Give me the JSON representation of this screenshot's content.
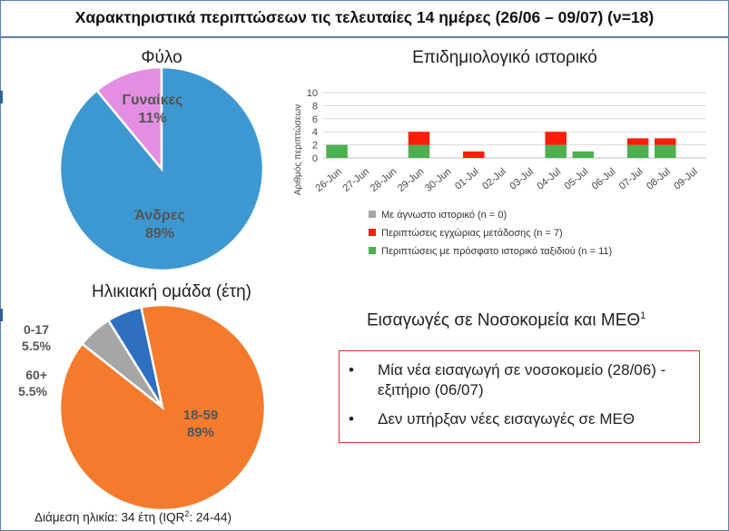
{
  "title": "Χαρακτηριστικά περιπτώσεων τις τελευταίες 14 ημέρες (26/06 – 09/07) (ν=18)",
  "colors": {
    "male": "#3d98d1",
    "female": "#e38ee3",
    "age_18_59": "#f47b2c",
    "age_0_17": "#2e6fc1",
    "age_60_plus": "#a6a6a6",
    "unknown": "#a6a6a6",
    "local": "#ff1c0a",
    "travel": "#4caf50",
    "box_border": "#d9342b"
  },
  "chart_data": [
    {
      "type": "pie",
      "title": "Φύλο",
      "slices": [
        {
          "label": "Άνδρες",
          "value": 89,
          "display": "89%",
          "color": "#3d98d1"
        },
        {
          "label": "Γυναίκες",
          "value": 11,
          "display": "11%",
          "color": "#e38ee3"
        }
      ]
    },
    {
      "type": "bar",
      "stacked": true,
      "title": "Επιδημιολογικό ιστορικό",
      "ylabel": "Αριθμός περιπτώσεων",
      "ylim": [
        0,
        10
      ],
      "yticks": [
        0,
        2,
        4,
        6,
        8,
        10
      ],
      "grid": true,
      "categories": [
        "26-Jun",
        "27-Jun",
        "28-Jun",
        "29-Jun",
        "30-Jun",
        "01-Jul",
        "02-Jul",
        "03-Jul",
        "04-Jul",
        "05-Jul",
        "06-Jul",
        "07-Jul",
        "08-Jul",
        "09-Jul"
      ],
      "series": [
        {
          "name": "Περιπτώσεις με πρόσφατο ιστορικό ταξιδιού (n = 11)",
          "color": "#4caf50",
          "values": [
            2,
            0,
            0,
            2,
            0,
            0,
            0,
            0,
            2,
            1,
            0,
            2,
            2,
            0
          ]
        },
        {
          "name": "Περιπτώσεις εγχώριας μετάδοσης (n = 7)",
          "color": "#ff1c0a",
          "values": [
            0,
            0,
            0,
            2,
            0,
            1,
            0,
            0,
            2,
            0,
            0,
            1,
            1,
            0
          ]
        },
        {
          "name": "Με άγνωστο ιστορικό (n = 0)",
          "color": "#a6a6a6",
          "values": [
            0,
            0,
            0,
            0,
            0,
            0,
            0,
            0,
            0,
            0,
            0,
            0,
            0,
            0
          ]
        }
      ],
      "legend_order": [
        2,
        1,
        0
      ],
      "legend_placement": "bottom"
    },
    {
      "type": "pie",
      "title": "Ηλικιακή ομάδα (έτη)",
      "slices": [
        {
          "label": "18-59",
          "value": 89,
          "display": "89%",
          "color": "#f47b2c"
        },
        {
          "label": "60+",
          "value": 5.5,
          "display": "5.5%",
          "color": "#a6a6a6"
        },
        {
          "label": "0-17",
          "value": 5.5,
          "display": "5.5%",
          "color": "#2e6fc1"
        }
      ]
    }
  ],
  "hospital": {
    "title": "Εισαγωγές σε Νοσοκομεία και ΜΕΘ",
    "title_sup": "1",
    "items": [
      "Μία νέα εισαγωγή σε νοσοκομείο (28/06) - εξιτήριο (06/07)",
      "Δεν υπήρξαν νέες εισαγωγές σε ΜΕΘ"
    ]
  },
  "median": {
    "text": "Διάμεση ηλικία: 34 έτη (IQR",
    "sup": "2",
    "text_after": ": 24-44)"
  }
}
